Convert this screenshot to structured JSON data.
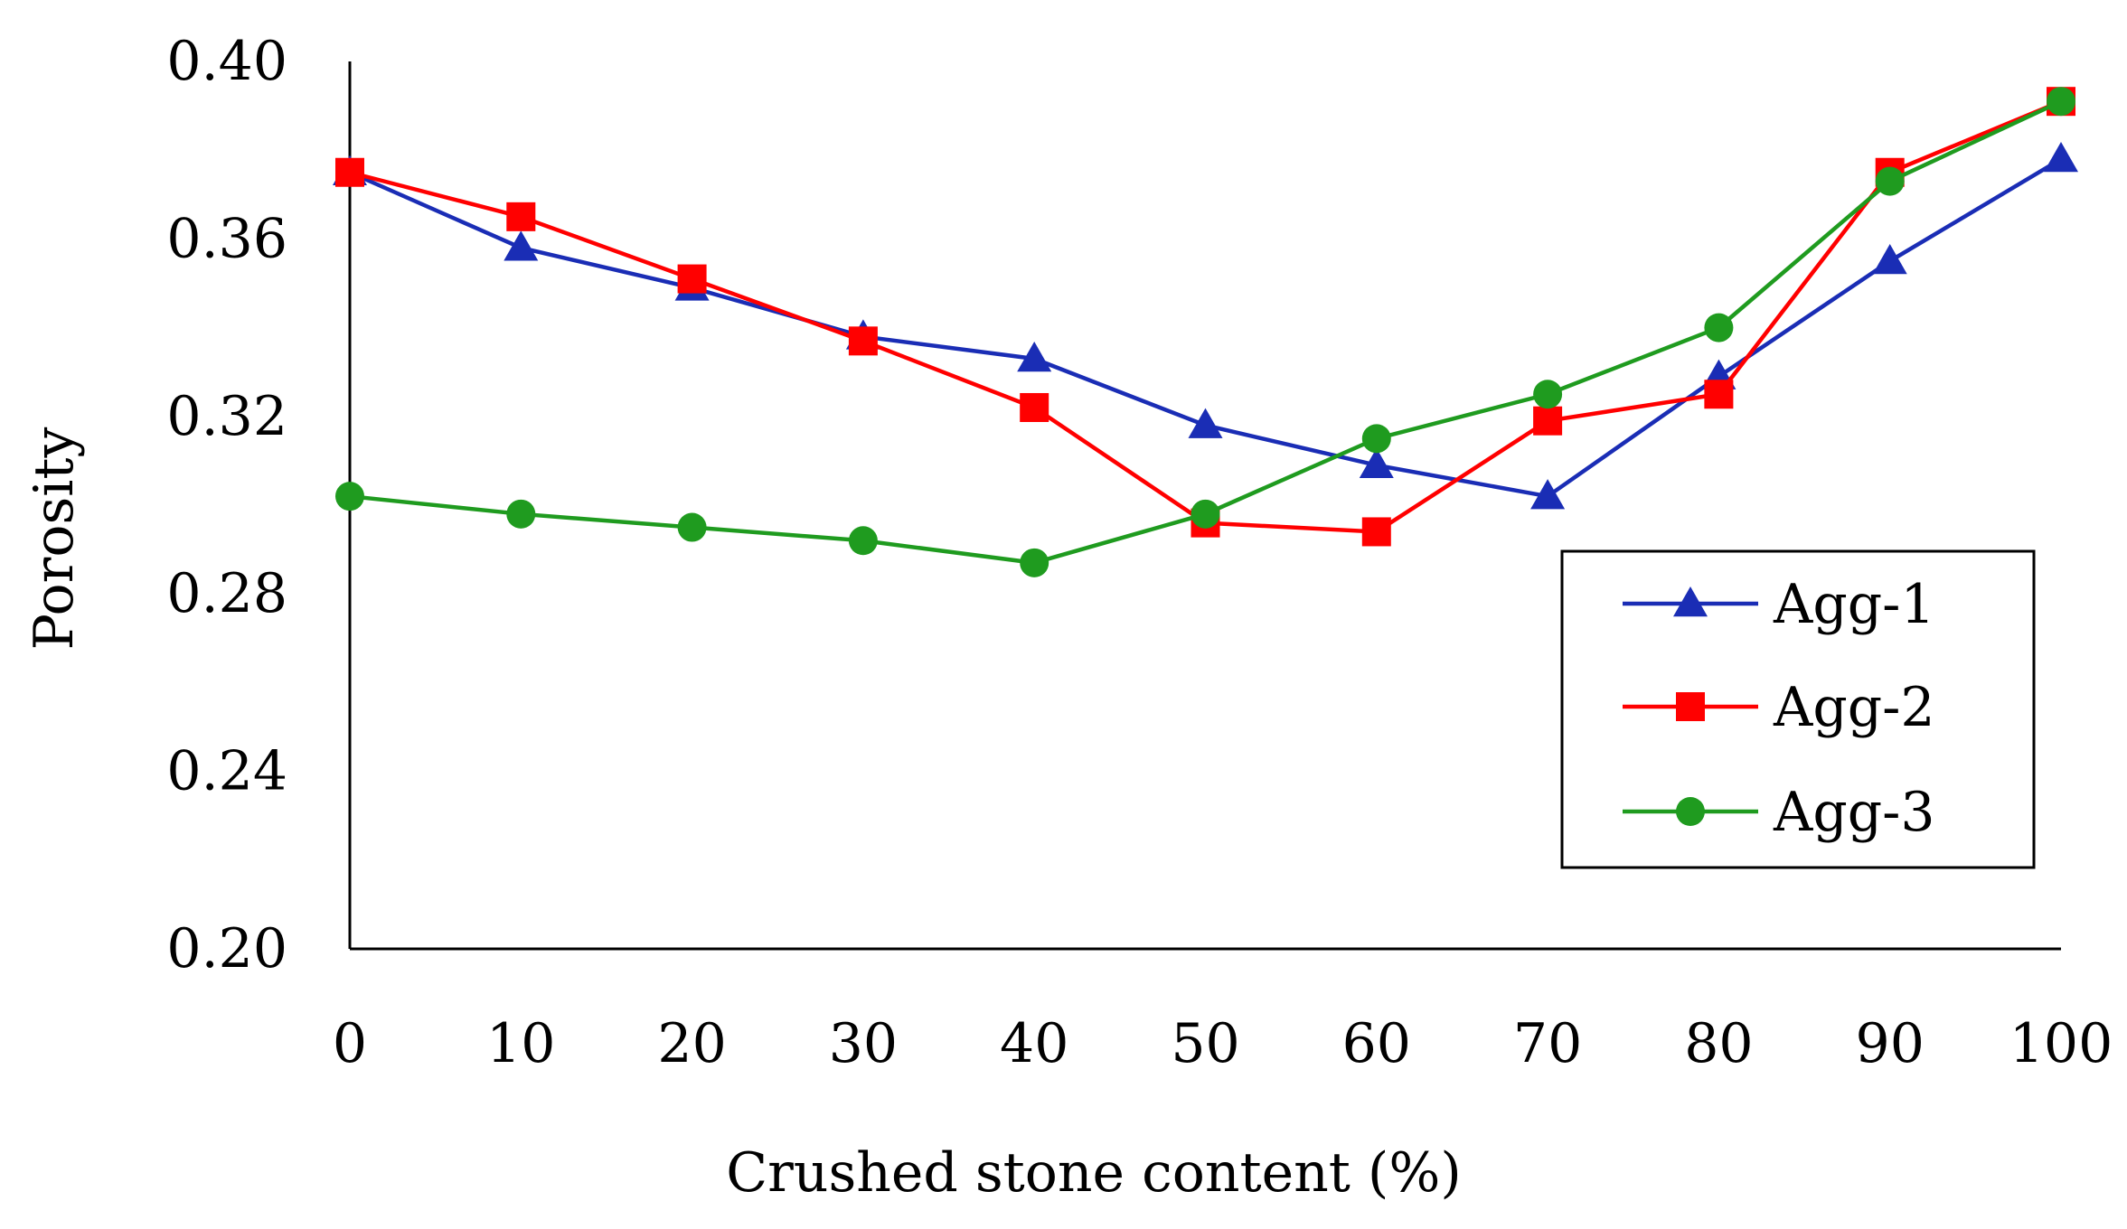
{
  "chart_data": {
    "type": "line",
    "title": "",
    "xlabel": "Crushed stone content (%)",
    "ylabel": "Porosity",
    "x": [
      0,
      10,
      20,
      30,
      40,
      50,
      60,
      70,
      80,
      90,
      100
    ],
    "x_tick_labels": [
      "0",
      "10",
      "20",
      "30",
      "40",
      "50",
      "60",
      "70",
      "80",
      "90",
      "100"
    ],
    "xlim": [
      0,
      100
    ],
    "ylim": [
      0.2,
      0.4
    ],
    "y_ticks": [
      0.2,
      0.24,
      0.28,
      0.32,
      0.36,
      0.4
    ],
    "y_tick_labels": [
      "0.20",
      "0.24",
      "0.28",
      "0.32",
      "0.36",
      "0.40"
    ],
    "grid": false,
    "legend_position": "right",
    "series": [
      {
        "name": "Agg-1",
        "color": "#1a2db5",
        "marker": "triangle",
        "values": [
          0.375,
          0.358,
          0.349,
          0.338,
          0.333,
          0.318,
          0.309,
          0.302,
          0.329,
          0.355,
          0.378
        ]
      },
      {
        "name": "Agg-2",
        "color": "#ff0000",
        "marker": "square",
        "values": [
          0.375,
          0.365,
          0.351,
          0.337,
          0.322,
          0.296,
          0.294,
          0.319,
          0.325,
          0.375,
          0.391
        ]
      },
      {
        "name": "Agg-3",
        "color": "#1f9b1f",
        "marker": "circle",
        "values": [
          0.302,
          0.298,
          0.295,
          0.292,
          0.287,
          0.298,
          0.315,
          0.325,
          0.34,
          0.373,
          0.391
        ]
      }
    ]
  }
}
